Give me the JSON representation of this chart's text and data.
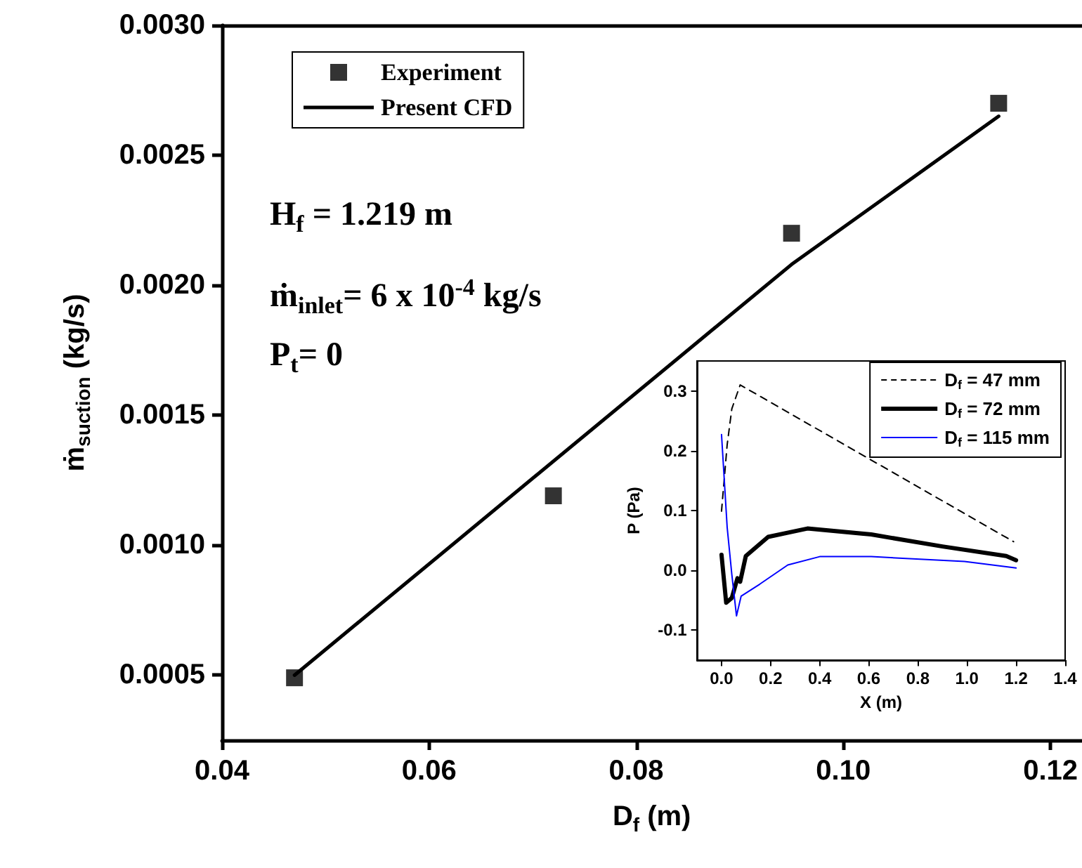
{
  "chart_data": [
    {
      "type": "scatter",
      "xlabel": "D$_{f}$ (m)",
      "ylabel": "ṁ$_{suction}$ (kg/s)",
      "xlim": [
        0.04,
        0.123
      ],
      "ylim": [
        0.00025,
        0.003
      ],
      "xticks": [
        0.04,
        0.06,
        0.08,
        {
          "value": 0.1,
          "label": "0.10"
        },
        {
          "value": 0.12,
          "label": "0.12"
        }
      ],
      "yticks": [
        {
          "value": 0.0005,
          "label": "0.0005"
        },
        {
          "value": 0.001,
          "label": "0.0010"
        },
        {
          "value": 0.0015,
          "label": "0.0015"
        },
        {
          "value": 0.002,
          "label": "0.0020"
        },
        {
          "value": 0.0025,
          "label": "0.0025"
        },
        {
          "value": 0.003,
          "label": "0.0030"
        }
      ],
      "grid": false,
      "legend": "top left",
      "annotations": [
        "H$_{f}$ = 1.219 m",
        "ṁ$_{inlet}$= 6 x 10$^{-4}$ kg/s",
        "P$_{t}$= 0"
      ],
      "series": [
        {
          "name": "Experiment",
          "marker": "square",
          "color": "#000000",
          "x": [
            0.047,
            0.072,
            0.095,
            0.115
          ],
          "values": [
            0.00049,
            0.00119,
            0.0022,
            0.0027
          ]
        },
        {
          "name": "Present CFD",
          "type": "line",
          "marker": "none",
          "line_style": "solid",
          "color": "#000000",
          "x": [
            0.047,
            0.095,
            0.115
          ],
          "values": [
            0.0005,
            0.00208,
            0.00265
          ]
        }
      ]
    },
    {
      "type": "line",
      "xlabel": "X (m)",
      "ylabel": "P (Pa)",
      "xlim": [
        -0.1,
        1.4
      ],
      "ylim": [
        -0.15,
        0.35
      ],
      "xticks": [
        {
          "value": 0,
          "label": "0.0"
        },
        0.2,
        0.4,
        0.6,
        0.8,
        {
          "value": 1,
          "label": "1.0"
        },
        1.2,
        1.4
      ],
      "yticks": [
        -0.1,
        {
          "value": 0,
          "label": "0.0"
        },
        0.1,
        0.2,
        0.3
      ],
      "grid": false,
      "legend": "top right",
      "marker": "none",
      "series": [
        {
          "name": "D$_{f}$ = 47 mm",
          "line_style": "dashed",
          "color": "#000000",
          "x": [
            0,
            0.023,
            0.042,
            0.076,
            1.19
          ],
          "values": [
            0.099,
            0.21,
            0.27,
            0.31,
            0.048
          ]
        },
        {
          "name": "D$_{f}$ = 72 mm",
          "line_style": "solid",
          "color": "#000000",
          "x": [
            0,
            0.019,
            0.042,
            0.065,
            0.076,
            0.099,
            0.19,
            0.35,
            0.61,
            0.9,
            1.16,
            1.2
          ],
          "values": [
            0.026,
            -0.054,
            -0.046,
            -0.013,
            -0.019,
            0.024,
            0.056,
            0.07,
            0.06,
            0.04,
            0.024,
            0.017
          ]
        },
        {
          "name": "D$_{f}$ = 115 mm",
          "line_style": "solid",
          "color": "#0000ff",
          "x": [
            0,
            0.023,
            0.042,
            0.061,
            0.08,
            0.156,
            0.27,
            0.4,
            0.61,
            0.99,
            1.2
          ],
          "values": [
            0.227,
            0.072,
            -0.007,
            -0.076,
            -0.043,
            -0.023,
            0.009,
            0.023,
            0.023,
            0.015,
            0.004
          ]
        }
      ]
    }
  ]
}
